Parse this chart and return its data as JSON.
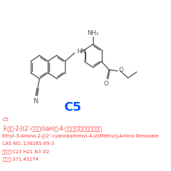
{
  "title": "C5",
  "title_color": "#0055FF",
  "title_fontsize": 13,
  "bg_color": "#FFFFFF",
  "text_color": "#FF3333",
  "bond_color": "#555555",
  "lines": [
    "C5",
    "3-氨基-2-[(2’-氰基聯(lián)苯-4-基）甲基]氨基苯甲酸乙酯",
    "Ethyl-3-Amino-2-[(2’-cyanobiphenyl-4-yl)Methyl]-Amino Benzoate",
    "CAS NO.:136285-69-3",
    "分子式:C23 H21 N3 O2",
    "分子量:371.43174"
  ],
  "line_fontsizes": [
    5,
    5.5,
    5,
    5,
    5,
    5
  ]
}
